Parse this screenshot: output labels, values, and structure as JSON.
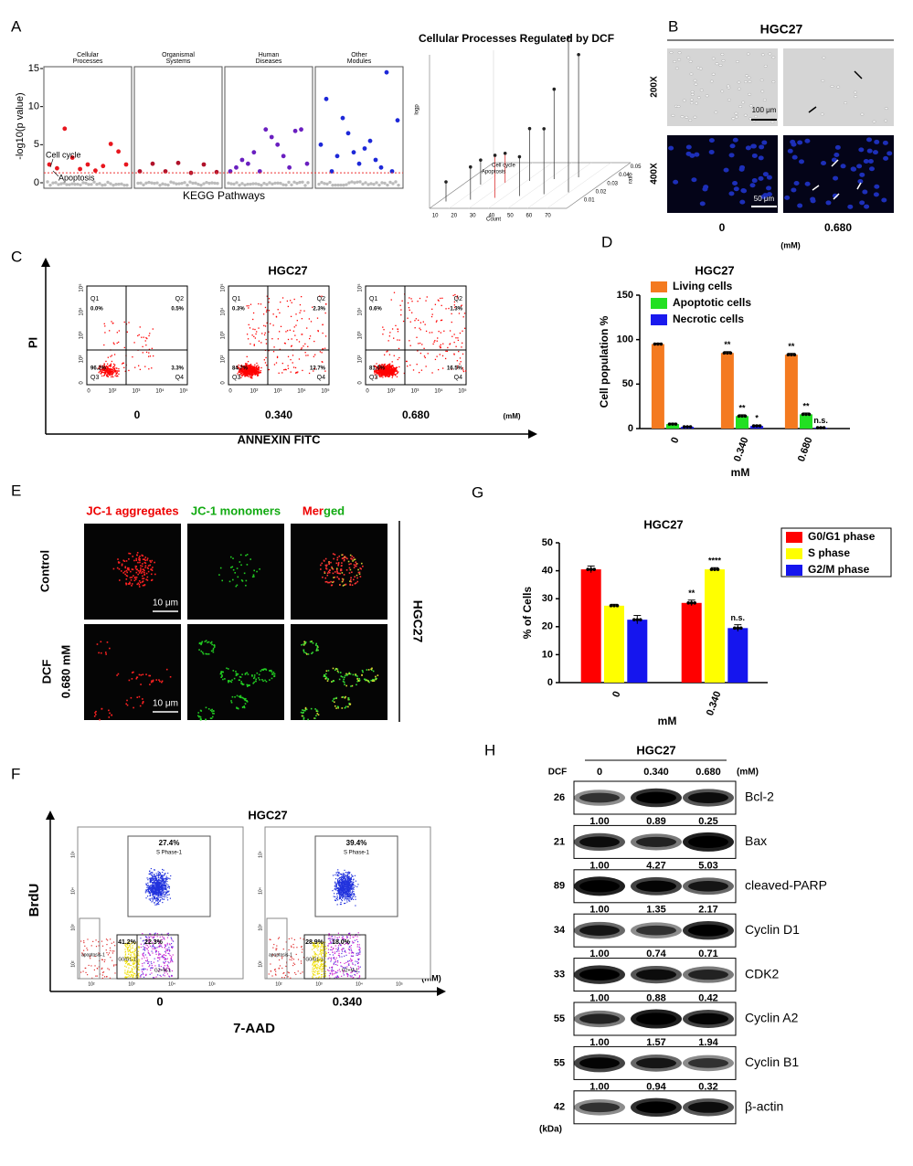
{
  "panel_labels": [
    "A",
    "B",
    "C",
    "D",
    "E",
    "F",
    "G",
    "H"
  ],
  "kegg": {
    "y_label": "-log10(p value)",
    "x_label": "KEGG Pathways",
    "ylim": [
      0,
      15
    ],
    "yticks": [
      0,
      5,
      10,
      15
    ],
    "threshold": 1.3,
    "facets": [
      {
        "title": [
          "Cellular",
          "Processes"
        ],
        "color": "#e8161e",
        "values": [
          2.4,
          1.9,
          7.1,
          3.3,
          1.8,
          2.4,
          1.6,
          2.2,
          5.1,
          4.1,
          2.4
        ]
      },
      {
        "title": [
          "Organismal",
          "Systems"
        ],
        "color": "#b0122a",
        "values": [
          1.5,
          2.5,
          1.5,
          2.6,
          1.3,
          2.4,
          1.4
        ]
      },
      {
        "title": [
          "Human",
          "Diseases"
        ],
        "color": "#6a1fc0",
        "values": [
          1.5,
          2.0,
          3.0,
          2.5,
          4.0,
          1.5,
          7.0,
          6.0,
          5.0,
          3.5,
          2.0,
          6.8,
          7.0,
          2.5
        ]
      },
      {
        "title": [
          "Other",
          "Modules"
        ],
        "color": "#1d28d8",
        "values": [
          5.0,
          11.0,
          1.5,
          3.5,
          8.5,
          6.5,
          4.0,
          2.5,
          4.5,
          5.5,
          3.0,
          2.0,
          14.5,
          1.5,
          8.2
        ]
      }
    ],
    "annotations": [
      "Cell cycle",
      "Apoptosis"
    ]
  },
  "kegg3d": {
    "title": "Cellular Processes Regulated by DCF",
    "x_label": "Count",
    "y_label": "ratio",
    "z_label": "logp",
    "xticks": [
      10,
      20,
      30,
      40,
      50,
      60,
      70
    ],
    "yticks": [
      0.01,
      0.02,
      0.03,
      0.04,
      0.05
    ],
    "values": [
      1.2,
      1.5,
      2.0,
      1.8,
      2.6,
      3.2,
      2.4,
      5.5,
      4.0,
      7.5,
      9.5
    ],
    "annotations": [
      "Cell cycle",
      "Apoptosis"
    ]
  },
  "micro": {
    "title": "HGC27",
    "rows": [
      "200X",
      "400X"
    ],
    "scale_bars": [
      "100 μm",
      "50 μm"
    ],
    "doses": [
      "0",
      "0.680"
    ],
    "unit": "(mM)"
  },
  "annexin": {
    "title": "HGC27",
    "y_label": "PI",
    "x_label": "ANNEXIN FITC",
    "unit": "(mM)",
    "ticks": [
      "0",
      "10²",
      "10³",
      "10⁴",
      "10⁵"
    ],
    "quadrants": [
      "Q1",
      "Q2",
      "Q3",
      "Q4"
    ],
    "plots": [
      {
        "dose": "0",
        "percents": [
          "0.0%",
          "0.5%",
          "96.2%",
          "3.3%"
        ]
      },
      {
        "dose": "0.340",
        "percents": [
          "0.3%",
          "2.3%",
          "84.7%",
          "12.7%"
        ]
      },
      {
        "dose": "0.680",
        "percents": [
          "0.6%",
          "1.3%",
          "81.6%",
          "16.5%"
        ]
      }
    ]
  },
  "chart_data": [
    {
      "type": "bar",
      "title": "HGC27",
      "y_label": "Cell population %",
      "x_label": "mM",
      "categories": [
        "0",
        "0.340",
        "0.680"
      ],
      "ylim": [
        0,
        150
      ],
      "yticks": [
        0,
        50,
        100,
        150
      ],
      "legend": "top-left",
      "series": [
        {
          "name": "Living cells",
          "color": "#f47a20",
          "values": [
            95,
            85,
            83
          ],
          "errors": [
            1,
            1.5,
            1.5
          ],
          "annotations": [
            null,
            "**",
            "**"
          ]
        },
        {
          "name": "Apoptotic cells",
          "color": "#22e022",
          "values": [
            5,
            14,
            16
          ],
          "errors": [
            1,
            1.5,
            1.5
          ],
          "annotations": [
            null,
            "**",
            "**"
          ]
        },
        {
          "name": "Necrotic cells",
          "color": "#1a1aee",
          "values": [
            2,
            3,
            1
          ],
          "errors": [
            0.5,
            0.8,
            0.4
          ],
          "annotations": [
            null,
            "*",
            "n.s."
          ]
        }
      ]
    },
    {
      "type": "bar",
      "title": "HGC27",
      "y_label": "% of Cells",
      "x_label": "mM",
      "categories": [
        "0",
        "0.340"
      ],
      "ylim": [
        0,
        50
      ],
      "yticks": [
        0,
        10,
        20,
        30,
        40,
        50
      ],
      "legend": "right",
      "series": [
        {
          "name": "G0/G1 phase",
          "color": "#ff0000",
          "values": [
            40.5,
            28.5
          ],
          "errors": [
            1.2,
            1
          ],
          "annotations": [
            null,
            "**"
          ]
        },
        {
          "name": "S phase",
          "color": "#ffff00",
          "values": [
            27.5,
            40.5
          ],
          "errors": [
            0.5,
            0.6
          ],
          "annotations": [
            null,
            "****"
          ]
        },
        {
          "name": "G2/M phase",
          "color": "#1515ee",
          "values": [
            22.5,
            19.5
          ],
          "errors": [
            1.5,
            1.2
          ],
          "annotations": [
            null,
            "n.s."
          ]
        }
      ]
    }
  ],
  "jc1": {
    "columns": [
      "JC-1 aggregates",
      "JC-1 monomers"
    ],
    "merged": [
      "Mer",
      "ged"
    ],
    "rows": [
      "Control",
      "DCF"
    ],
    "dose": "0.680 mM",
    "scale_bar": "10 μm",
    "cell_line": "HGC27"
  },
  "brdu": {
    "title": "HGC27",
    "y_label": "BrdU",
    "x_label": "7-AAD",
    "unit": "(mM)",
    "ticks": [
      "10²",
      "10³",
      "10⁴",
      "10⁵"
    ],
    "gates": [
      "S Phase-1",
      "G0/G1-1",
      "G2+M-1",
      "apoptosis-1"
    ],
    "plots": [
      {
        "dose": "0",
        "s": "27.4%",
        "g1": "41.2%",
        "g2": "22.3%"
      },
      {
        "dose": "0.340",
        "s": "39.4%",
        "g1": "28.9%",
        "g2": "18.0%"
      }
    ]
  },
  "western": {
    "title": "HGC27",
    "treatment": "DCF",
    "doses": [
      "0",
      "0.340",
      "0.680"
    ],
    "unit": "(mM)",
    "kda_unit": "(kDa)",
    "rows": [
      {
        "kda": 26,
        "protein": "Bcl-2",
        "ratios": [
          "1.00",
          "0.89",
          "0.25"
        ]
      },
      {
        "kda": 21,
        "protein": "Bax",
        "ratios": [
          "1.00",
          "4.27",
          "5.03"
        ]
      },
      {
        "kda": 89,
        "protein": "cleaved-PARP",
        "ratios": [
          "1.00",
          "1.35",
          "2.17"
        ]
      },
      {
        "kda": 34,
        "protein": "Cyclin D1",
        "ratios": [
          "1.00",
          "0.74",
          "0.71"
        ]
      },
      {
        "kda": 33,
        "protein": "CDK2",
        "ratios": [
          "1.00",
          "0.88",
          "0.42"
        ]
      },
      {
        "kda": 55,
        "protein": "Cyclin A2",
        "ratios": [
          "1.00",
          "1.57",
          "1.94"
        ]
      },
      {
        "kda": 55,
        "protein": "Cyclin B1",
        "ratios": [
          "1.00",
          "0.94",
          "0.32"
        ]
      },
      {
        "kda": 42,
        "protein": "β-actin"
      }
    ]
  }
}
